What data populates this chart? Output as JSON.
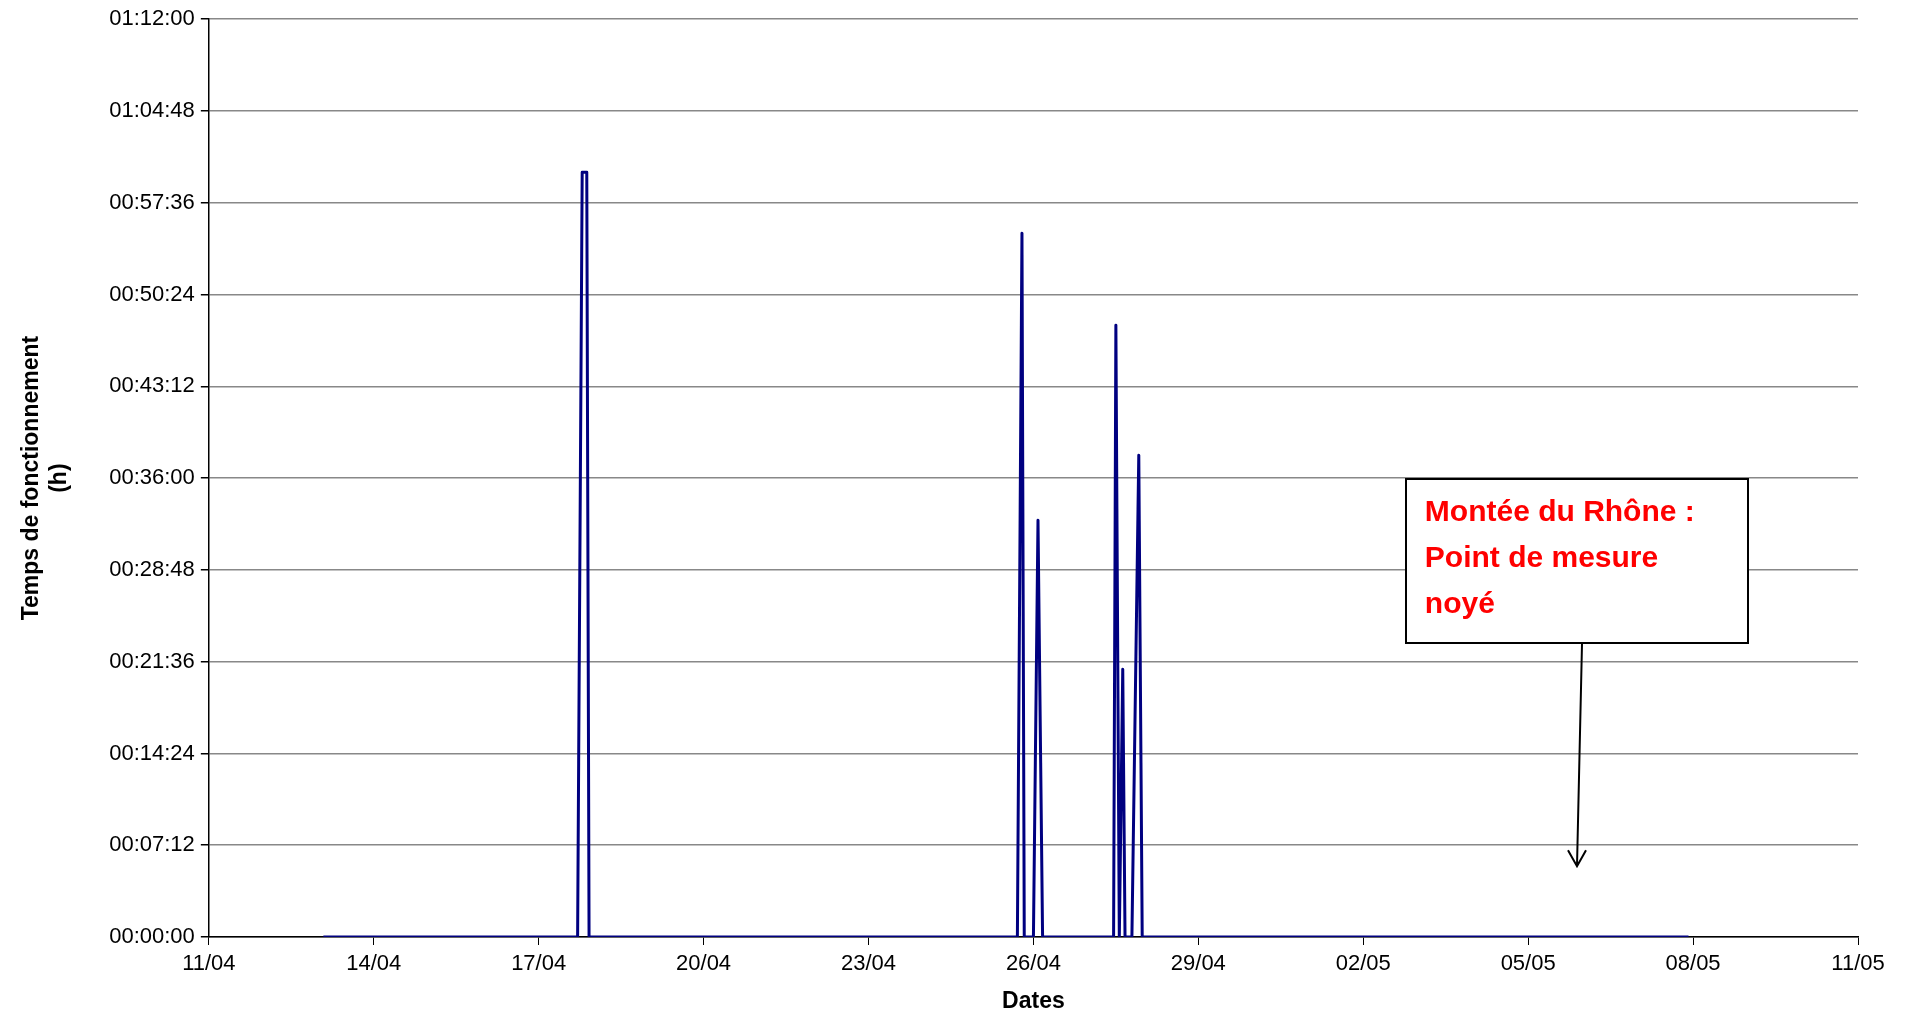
{
  "chart_data": {
    "type": "line",
    "xlabel": "Dates",
    "ylabel": "Temps de fonctionnement (h)",
    "x": [
      "--04-13T02:00",
      "--04-17T17:00",
      "--04-17T19:00",
      "--04-17T21:00",
      "--04-17T22:00",
      "--04-25T17:00",
      "--04-25T19:00",
      "--04-25T20:00",
      "--04-26T00:00",
      "--04-26T02:00",
      "--04-26T04:00",
      "--04-27T11:00",
      "--04-27T12:00",
      "--04-27T13:30",
      "--04-27T15:00",
      "--04-27T16:00",
      "--04-27T19:00",
      "--04-27T22:00",
      "--04-27T23:30",
      "--05-07T22:00"
    ],
    "series": [
      {
        "color": "#000080",
        "values": [
          0,
          0,
          1.0,
          1.0,
          0,
          0,
          0.92,
          0,
          0,
          0.545,
          0,
          0,
          0.8,
          0,
          0.35,
          0,
          0,
          0.63,
          0,
          0
        ]
      }
    ],
    "xlim": [
      "--04-11",
      "--05-11"
    ],
    "xticks": [
      {
        "value": "--04-11",
        "label": "11/04"
      },
      {
        "value": "--04-14",
        "label": "14/04"
      },
      {
        "value": "--04-17",
        "label": "17/04"
      },
      {
        "value": "--04-20",
        "label": "20/04"
      },
      {
        "value": "--04-23",
        "label": "23/04"
      },
      {
        "value": "--04-26",
        "label": "26/04"
      },
      {
        "value": "--04-29",
        "label": "29/04"
      },
      {
        "value": "--05-02",
        "label": "02/05"
      },
      {
        "value": "--05-05",
        "label": "05/05"
      },
      {
        "value": "--05-08",
        "label": "08/05"
      },
      {
        "value": "--05-11",
        "label": "11/05"
      }
    ],
    "ylim": [
      0,
      1.2
    ],
    "yticks": [
      {
        "value": 0,
        "label": "00:00:00"
      },
      {
        "value": 0.12,
        "label": "00:07:12"
      },
      {
        "value": 0.24,
        "label": "00:14:24"
      },
      {
        "value": 0.36,
        "label": "00:21:36"
      },
      {
        "value": 0.48,
        "label": "00:28:48"
      },
      {
        "value": 0.6,
        "label": "00:36:00"
      },
      {
        "value": 0.72,
        "label": "00:43:12"
      },
      {
        "value": 0.84,
        "label": "00:50:24"
      },
      {
        "value": 0.96,
        "label": "00:57:36"
      },
      {
        "value": 1.08,
        "label": "01:04:48"
      },
      {
        "value": 1.2,
        "label": "01:12:00"
      }
    ],
    "grid": "y",
    "legend": false,
    "marker": "none",
    "line_style": "solid",
    "annotations": [
      "Montée du Rhône : Point de mesure noyé"
    ]
  }
}
